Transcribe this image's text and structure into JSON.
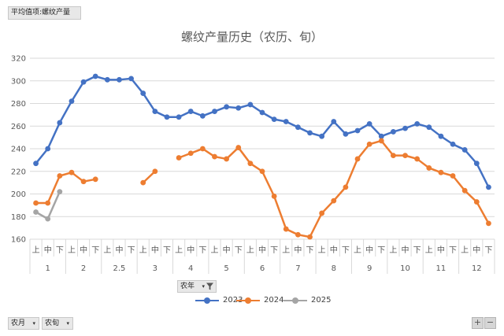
{
  "field_buttons": {
    "value_field": "平均值项:螺纹产量",
    "year_field": "农年",
    "month_field": "农月",
    "period_field": "农旬"
  },
  "zoom": {
    "plus": "+",
    "minus": "−"
  },
  "colors": {
    "2023": "#4472c4",
    "2024": "#ed7d31",
    "2025": "#a5a5a5"
  },
  "icons": {
    "dropdown": "dropdown-arrow-icon",
    "filter": "filter-icon"
  },
  "chart_data": {
    "type": "line",
    "title": "螺纹产量历史（农历、旬）",
    "ylim": [
      160,
      320
    ],
    "yticks": [
      160,
      180,
      200,
      220,
      240,
      260,
      280,
      300,
      320
    ],
    "grid": true,
    "legend_position": "bottom",
    "periods": [
      "上",
      "中",
      "下",
      "上",
      "中",
      "下",
      "上",
      "中",
      "下",
      "上",
      "中",
      "下",
      "上",
      "中",
      "下",
      "上",
      "中",
      "下",
      "上",
      "中",
      "下",
      "上",
      "中",
      "下",
      "上",
      "中",
      "下",
      "上",
      "中",
      "下",
      "上",
      "中",
      "下",
      "上",
      "中",
      "下",
      "上",
      "中",
      "下"
    ],
    "months": [
      "1",
      "2",
      "2.5",
      "3",
      "4",
      "5",
      "6",
      "7",
      "8",
      "9",
      "10",
      "11",
      "12"
    ],
    "series": [
      {
        "name": "2023",
        "color": "#4472c4",
        "values": [
          227,
          240,
          263,
          282,
          299,
          304,
          301,
          301,
          302,
          289,
          273,
          268,
          268,
          273,
          269,
          273,
          277,
          276,
          279,
          272,
          266,
          264,
          259,
          254,
          251,
          264,
          253,
          256,
          262,
          251,
          255,
          258,
          262,
          259,
          251,
          244,
          239,
          227,
          206
        ]
      },
      {
        "name": "2024",
        "color": "#ed7d31",
        "values": [
          192,
          192,
          216,
          219,
          211,
          213,
          null,
          null,
          null,
          210,
          220,
          null,
          232,
          236,
          240,
          233,
          231,
          241,
          227,
          220,
          198,
          169,
          164,
          162,
          183,
          194,
          206,
          231,
          244,
          247,
          234,
          234,
          231,
          223,
          219,
          216,
          203,
          193,
          174
        ]
      },
      {
        "name": "2025",
        "color": "#a5a5a5",
        "values": [
          184,
          178,
          202,
          null,
          null,
          null,
          null,
          null,
          null,
          null,
          null,
          null,
          null,
          null,
          null,
          null,
          null,
          null,
          null,
          null,
          null,
          null,
          null,
          null,
          null,
          null,
          null,
          null,
          null,
          null,
          null,
          null,
          null,
          null,
          null,
          null,
          null,
          null,
          null
        ]
      }
    ]
  }
}
